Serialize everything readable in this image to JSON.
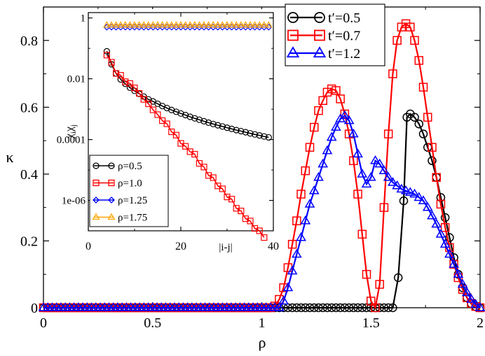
{
  "chart_data": [
    {
      "type": "line",
      "role": "main",
      "title": "",
      "xlabel": "ρ",
      "ylabel": "κ",
      "xlim": [
        0,
        2
      ],
      "ylim": [
        0,
        0.9
      ],
      "xticks": [
        "0",
        "0.5",
        "1",
        "1.5",
        "2"
      ],
      "yticks": [
        "0",
        "0.2",
        "0.4",
        "0.6",
        "0.8"
      ],
      "legend_position": "top-right",
      "series": [
        {
          "name": "t′=0.5",
          "color": "#000000",
          "marker": "circle",
          "x": [
            0,
            0.02,
            0.04,
            0.06,
            0.08,
            0.1,
            0.12,
            0.14,
            0.16,
            0.18,
            0.2,
            0.22,
            0.24,
            0.26,
            0.28,
            0.3,
            0.32,
            0.34,
            0.36,
            0.38,
            0.4,
            0.42,
            0.44,
            0.46,
            0.48,
            0.5,
            0.52,
            0.54,
            0.56,
            0.58,
            0.6,
            0.62,
            0.64,
            0.66,
            0.68,
            0.7,
            0.72,
            0.74,
            0.76,
            0.78,
            0.8,
            0.82,
            0.84,
            0.86,
            0.88,
            0.9,
            0.92,
            0.94,
            0.96,
            0.98,
            1.0,
            1.02,
            1.04,
            1.06,
            1.08,
            1.1,
            1.12,
            1.14,
            1.16,
            1.18,
            1.2,
            1.22,
            1.24,
            1.26,
            1.28,
            1.3,
            1.32,
            1.34,
            1.36,
            1.38,
            1.4,
            1.42,
            1.44,
            1.46,
            1.48,
            1.5,
            1.52,
            1.54,
            1.56,
            1.58,
            1.6,
            1.625,
            1.65,
            1.665,
            1.68,
            1.7,
            1.72,
            1.74,
            1.76,
            1.78,
            1.8,
            1.82,
            1.84,
            1.86,
            1.88,
            1.9,
            1.92,
            1.94,
            1.96,
            1.98,
            2.0
          ],
          "y": [
            0,
            0,
            0,
            0,
            0,
            0,
            0,
            0,
            0,
            0,
            0,
            0,
            0,
            0,
            0,
            0,
            0,
            0,
            0,
            0,
            0,
            0,
            0,
            0,
            0,
            0,
            0,
            0,
            0,
            0,
            0,
            0,
            0,
            0,
            0,
            0,
            0,
            0,
            0,
            0,
            0,
            0,
            0,
            0,
            0,
            0,
            0,
            0,
            0,
            0,
            0,
            0,
            0,
            0,
            0,
            0,
            0,
            0,
            0,
            0,
            0,
            0,
            0,
            0,
            0,
            0,
            0,
            0,
            0,
            0,
            0,
            0,
            0,
            0,
            0,
            0,
            0,
            0,
            0,
            0,
            0,
            0.09,
            0.32,
            0.57,
            0.58,
            0.57,
            0.55,
            0.52,
            0.48,
            0.44,
            0.39,
            0.33,
            0.27,
            0.21,
            0.15,
            0.1,
            0.06,
            0.03,
            0.012,
            0.003,
            0
          ]
        },
        {
          "name": "t′=0.7",
          "color": "#ff0000",
          "marker": "square",
          "x": [
            0,
            0.02,
            0.04,
            0.06,
            0.08,
            0.1,
            0.12,
            0.14,
            0.16,
            0.18,
            0.2,
            0.22,
            0.24,
            0.26,
            0.28,
            0.3,
            0.32,
            0.34,
            0.36,
            0.38,
            0.4,
            0.42,
            0.44,
            0.46,
            0.48,
            0.5,
            0.52,
            0.54,
            0.56,
            0.58,
            0.6,
            0.62,
            0.64,
            0.66,
            0.68,
            0.7,
            0.72,
            0.74,
            0.76,
            0.78,
            0.8,
            0.82,
            0.84,
            0.86,
            0.88,
            0.9,
            0.92,
            0.94,
            0.96,
            0.98,
            1.0,
            1.02,
            1.04,
            1.06,
            1.08,
            1.1,
            1.12,
            1.14,
            1.16,
            1.18,
            1.2,
            1.22,
            1.24,
            1.26,
            1.28,
            1.3,
            1.32,
            1.34,
            1.36,
            1.38,
            1.4,
            1.42,
            1.44,
            1.46,
            1.48,
            1.5,
            1.52,
            1.54,
            1.56,
            1.58,
            1.6,
            1.62,
            1.64,
            1.66,
            1.68,
            1.7,
            1.72,
            1.74,
            1.76,
            1.78,
            1.8,
            1.82,
            1.84,
            1.86,
            1.88,
            1.9,
            1.92,
            1.94,
            1.96,
            1.98,
            2.0
          ],
          "y": [
            0,
            0,
            0,
            0,
            0,
            0,
            0,
            0,
            0,
            0,
            0,
            0,
            0,
            0,
            0,
            0,
            0,
            0,
            0,
            0,
            0,
            0,
            0,
            0,
            0,
            0,
            0,
            0,
            0,
            0,
            0,
            0,
            0,
            0,
            0,
            0,
            0,
            0,
            0,
            0,
            0,
            0,
            0,
            0,
            0,
            0,
            0,
            0,
            0,
            0,
            0,
            0,
            0,
            0.005,
            0.025,
            0.06,
            0.12,
            0.19,
            0.26,
            0.34,
            0.41,
            0.48,
            0.54,
            0.59,
            0.62,
            0.645,
            0.655,
            0.65,
            0.625,
            0.58,
            0.52,
            0.44,
            0.34,
            0.22,
            0.1,
            0.02,
            0,
            0.07,
            0.3,
            0.52,
            0.7,
            0.8,
            0.84,
            0.85,
            0.84,
            0.8,
            0.74,
            0.66,
            0.57,
            0.48,
            0.39,
            0.31,
            0.24,
            0.18,
            0.13,
            0.09,
            0.055,
            0.03,
            0.013,
            0.004,
            0
          ]
        },
        {
          "name": "t′=1.2",
          "color": "#0000ff",
          "marker": "triangle",
          "x": [
            0,
            0.02,
            0.04,
            0.06,
            0.08,
            0.1,
            0.12,
            0.14,
            0.16,
            0.18,
            0.2,
            0.22,
            0.24,
            0.26,
            0.28,
            0.3,
            0.32,
            0.34,
            0.36,
            0.38,
            0.4,
            0.42,
            0.44,
            0.46,
            0.48,
            0.5,
            0.52,
            0.54,
            0.56,
            0.58,
            0.6,
            0.62,
            0.64,
            0.66,
            0.68,
            0.7,
            0.72,
            0.74,
            0.76,
            0.78,
            0.8,
            0.82,
            0.84,
            0.86,
            0.88,
            0.9,
            0.92,
            0.94,
            0.96,
            0.98,
            1.0,
            1.02,
            1.04,
            1.06,
            1.08,
            1.1,
            1.12,
            1.14,
            1.16,
            1.18,
            1.2,
            1.22,
            1.24,
            1.26,
            1.28,
            1.3,
            1.32,
            1.34,
            1.36,
            1.38,
            1.4,
            1.42,
            1.44,
            1.46,
            1.48,
            1.5,
            1.52,
            1.54,
            1.56,
            1.58,
            1.6,
            1.62,
            1.64,
            1.66,
            1.68,
            1.7,
            1.72,
            1.74,
            1.76,
            1.78,
            1.8,
            1.82,
            1.84,
            1.86,
            1.88,
            1.9,
            1.92,
            1.94,
            1.96,
            1.98,
            2.0
          ],
          "y": [
            0,
            0,
            0,
            0,
            0,
            0,
            0,
            0,
            0,
            0,
            0,
            0,
            0,
            0,
            0,
            0,
            0,
            0,
            0,
            0,
            0,
            0,
            0,
            0,
            0,
            0,
            0,
            0,
            0,
            0,
            0,
            0,
            0,
            0,
            0,
            0,
            0,
            0,
            0,
            0,
            0,
            0,
            0,
            0,
            0,
            0,
            0,
            0,
            0,
            0,
            0,
            0,
            0,
            0,
            0,
            0.02,
            0.06,
            0.11,
            0.16,
            0.21,
            0.26,
            0.31,
            0.35,
            0.39,
            0.43,
            0.47,
            0.51,
            0.54,
            0.565,
            0.575,
            0.56,
            0.52,
            0.46,
            0.4,
            0.37,
            0.39,
            0.44,
            0.43,
            0.41,
            0.39,
            0.375,
            0.365,
            0.355,
            0.35,
            0.345,
            0.34,
            0.33,
            0.32,
            0.3,
            0.275,
            0.25,
            0.22,
            0.19,
            0.16,
            0.13,
            0.1,
            0.07,
            0.045,
            0.025,
            0.01,
            0
          ]
        }
      ]
    },
    {
      "type": "line",
      "role": "inset",
      "title": "",
      "xlabel": "|i-j|",
      "ylabel": "χiχj",
      "ylabel_parts": [
        "χ",
        "i",
        "χ",
        "j"
      ],
      "yscale": "log",
      "xlim": [
        0,
        40
      ],
      "ylim": [
        1e-07,
        1.5
      ],
      "xticks": [
        "0",
        "20",
        "40"
      ],
      "yticks": [
        "1",
        "0.01",
        "0.0001",
        "1e-06"
      ],
      "legend_position": "bottom-left",
      "series": [
        {
          "name": "ρ=0.5",
          "color": "#000000",
          "marker": "circle",
          "x": [
            4,
            5,
            6,
            7,
            8,
            9,
            10,
            11,
            12,
            13,
            14,
            15,
            16,
            17,
            18,
            19,
            20,
            21,
            22,
            23,
            24,
            25,
            26,
            27,
            28,
            29,
            30,
            31,
            32,
            33,
            34,
            35,
            36,
            37,
            38,
            39
          ],
          "y": [
            0.08,
            0.03,
            0.015,
            0.0095,
            0.0068,
            0.0051,
            0.004,
            0.0032,
            0.0026,
            0.0021,
            0.0018,
            0.0015,
            0.00127,
            0.00109,
            0.00094,
            0.00082,
            0.00072,
            0.00064,
            0.00056,
            0.0005,
            0.00045,
            0.0004,
            0.00036,
            0.000325,
            0.000295,
            0.00027,
            0.000245,
            0.000225,
            0.000205,
            0.00019,
            0.000175,
            0.00016,
            0.000148,
            0.000137,
            0.000127,
            0.000118
          ]
        },
        {
          "name": "ρ=1.0",
          "color": "#ff0000",
          "marker": "square",
          "x": [
            4,
            5,
            6,
            7,
            8,
            9,
            10,
            11,
            12,
            13,
            14,
            15,
            16,
            17,
            18,
            19,
            20,
            21,
            22,
            23,
            24,
            25,
            26,
            27,
            28,
            29,
            30,
            31,
            32,
            33,
            34,
            35,
            36,
            37,
            38
          ],
          "y": [
            0.06,
            0.035,
            0.015,
            0.013,
            0.008,
            0.007,
            0.005,
            0.0033,
            0.0021,
            0.0015,
            0.00095,
            0.00066,
            0.00042,
            0.00033,
            0.00018,
            0.00014,
            7.5e-05,
            6e-05,
            4e-05,
            3.3e-05,
            1.65e-05,
            1.25e-05,
            6.6e-06,
            5.6e-06,
            3e-06,
            2.4e-06,
            1.3e-06,
            1.1e-06,
            5.5e-07,
            4.5e-07,
            2.5e-07,
            2.1e-07,
            1.2e-07,
            1e-07,
            6e-08
          ]
        },
        {
          "name": "ρ=1.25",
          "color": "#0000ff",
          "marker": "diamond",
          "x": [
            4,
            5,
            6,
            7,
            8,
            9,
            10,
            11,
            12,
            13,
            14,
            15,
            16,
            17,
            18,
            19,
            20,
            21,
            22,
            23,
            24,
            25,
            26,
            27,
            28,
            29,
            30,
            31,
            32,
            33,
            34,
            35,
            36,
            37,
            38,
            39
          ],
          "y": [
            0.5,
            0.5,
            0.5,
            0.5,
            0.5,
            0.5,
            0.5,
            0.5,
            0.5,
            0.5,
            0.5,
            0.5,
            0.5,
            0.5,
            0.5,
            0.5,
            0.5,
            0.5,
            0.5,
            0.5,
            0.5,
            0.5,
            0.5,
            0.5,
            0.5,
            0.5,
            0.5,
            0.5,
            0.5,
            0.5,
            0.5,
            0.5,
            0.5,
            0.5,
            0.5,
            0.5
          ]
        },
        {
          "name": "ρ=1.75",
          "color": "#ffa500",
          "marker": "triangle",
          "x": [
            4,
            5,
            6,
            7,
            8,
            9,
            10,
            11,
            12,
            13,
            14,
            15,
            16,
            17,
            18,
            19,
            20,
            21,
            22,
            23,
            24,
            25,
            26,
            27,
            28,
            29,
            30,
            31,
            32,
            33,
            34,
            35,
            36,
            37,
            38,
            39
          ],
          "y": [
            0.58,
            0.58,
            0.58,
            0.58,
            0.58,
            0.58,
            0.58,
            0.58,
            0.58,
            0.58,
            0.58,
            0.58,
            0.58,
            0.58,
            0.58,
            0.58,
            0.58,
            0.58,
            0.58,
            0.58,
            0.58,
            0.58,
            0.58,
            0.58,
            0.58,
            0.58,
            0.58,
            0.58,
            0.58,
            0.58,
            0.58,
            0.58,
            0.58,
            0.58,
            0.58,
            0.58
          ]
        }
      ]
    }
  ]
}
